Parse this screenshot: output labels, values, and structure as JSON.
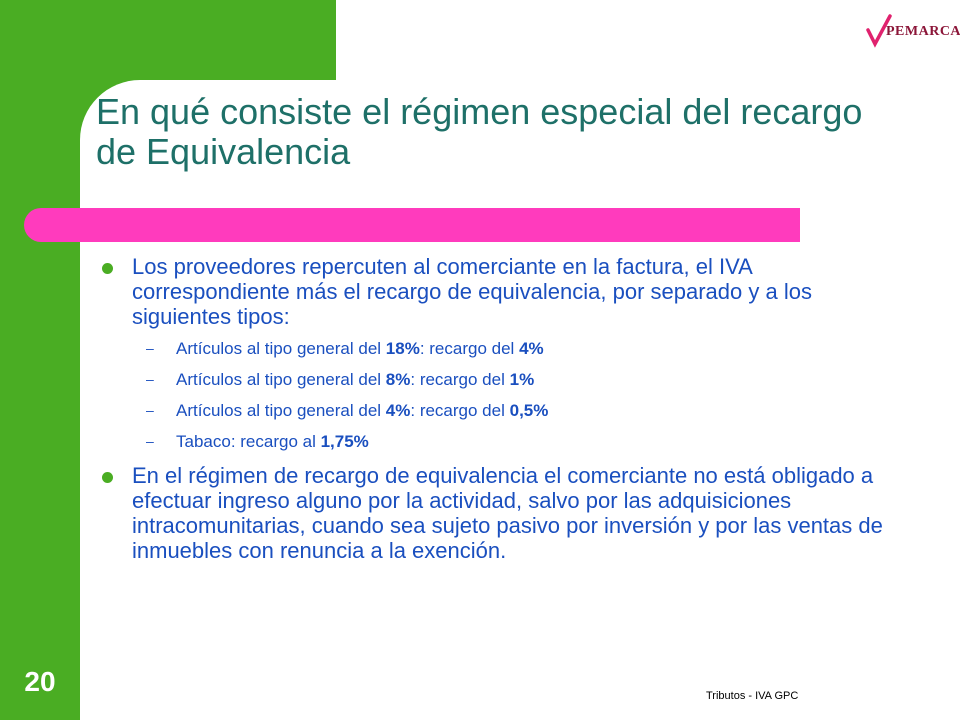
{
  "logo": {
    "text": "PEMARCA"
  },
  "title": "En qué consiste el régimen especial del recargo de Equivalencia",
  "bullets": [
    {
      "text": "Los proveedores repercuten al comerciante en la factura, el IVA correspondiente más el recargo de equivalencia, por separado y a los siguientes tipos:",
      "subitems": [
        {
          "prefix": "Artículos al tipo general del ",
          "rate": "18%",
          "mid": ": recargo del ",
          "surcharge": "4%"
        },
        {
          "prefix": "Artículos al tipo general del ",
          "rate": "8%",
          "mid": ": recargo del ",
          "surcharge": "1%"
        },
        {
          "prefix": "Artículos al tipo general del ",
          "rate": "4%",
          "mid": ": recargo del ",
          "surcharge": "0,5%"
        },
        {
          "prefix": "Tabaco: recargo al ",
          "rate": "1,75%",
          "mid": "",
          "surcharge": ""
        }
      ]
    },
    {
      "text": "En el régimen de recargo de equivalencia el comerciante no está obligado a efectuar ingreso alguno por la actividad, salvo por las adquisiciones intracomunitarias, cuando sea sujeto pasivo por inversión y por las ventas de inmuebles con renuncia a la exención."
    }
  ],
  "dash": "–",
  "page_number": "20",
  "footer": "Tributos - IVA GPC",
  "colors": {
    "green": "#4aad23",
    "pink": "#ff3bbd",
    "title": "#1e7068",
    "text": "#1a4fbf"
  }
}
